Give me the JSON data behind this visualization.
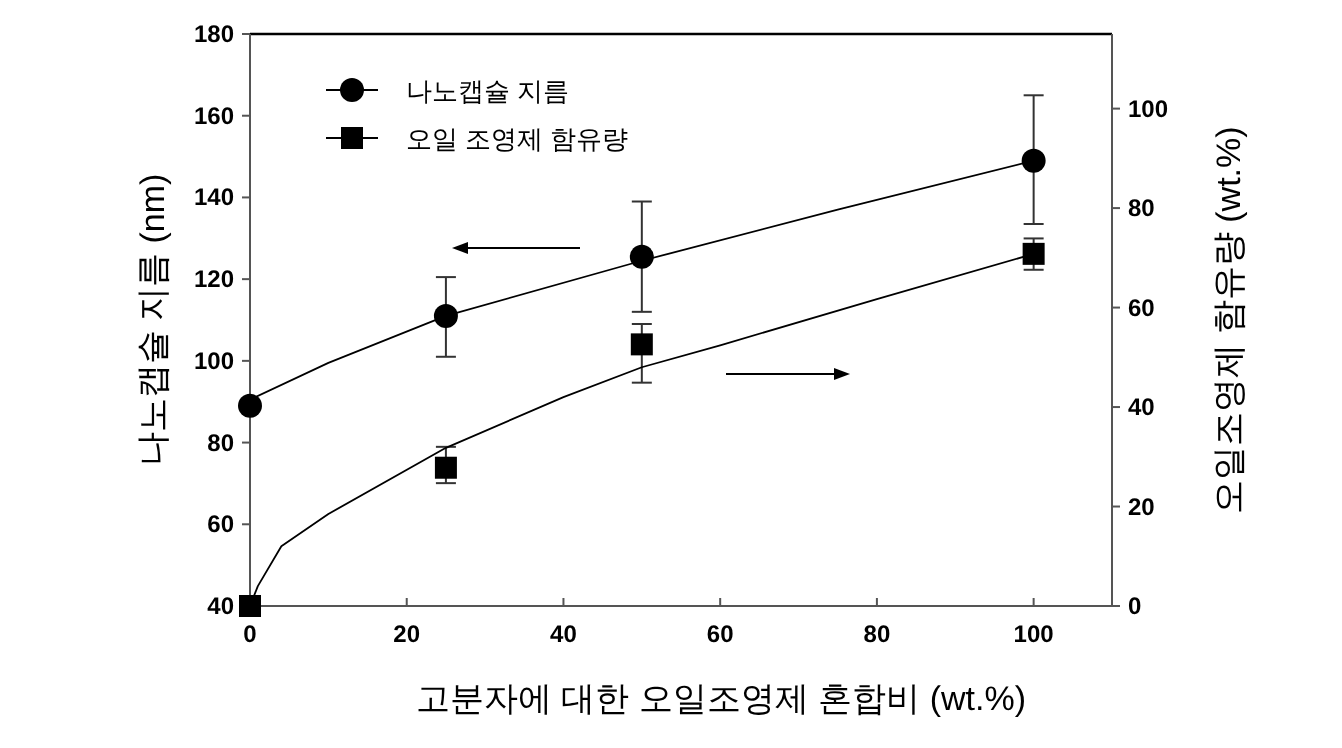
{
  "chart_data": {
    "type": "scatter",
    "xlabel": "고분자에 대한 오일조영제 혼합비 (wt.%)",
    "ylabel": "나노캡슐 지름 (nm)",
    "y2label": "오일조영제 함유량 (wt.%)",
    "xlim": [
      0,
      110
    ],
    "xticks": [
      0,
      20,
      40,
      60,
      80,
      100
    ],
    "ylim": [
      40,
      180
    ],
    "yticks": [
      40,
      60,
      80,
      100,
      120,
      140,
      160,
      180
    ],
    "y2lim": [
      0,
      115
    ],
    "y2ticks": [
      0,
      20,
      40,
      60,
      80,
      100
    ],
    "legend": "top left",
    "grid": false,
    "series": [
      {
        "name": "나노캡슐 지름",
        "type": "scatter",
        "marker": "circle",
        "color": "#000000",
        "x": [
          0,
          25,
          50,
          100
        ],
        "values": [
          89,
          111,
          125.5,
          149
        ],
        "errors": [
          null,
          [
            101,
            120.5
          ],
          [
            112,
            139
          ],
          [
            133.5,
            165
          ]
        ]
      },
      {
        "name": "오일 조영제 함유량",
        "type": "scatter",
        "marker": "square",
        "axis": "y2",
        "color": "#000000",
        "x": [
          0,
          25,
          50,
          100
        ],
        "values": [
          0,
          27.8,
          52.6,
          70.8
        ],
        "errors": [
          null,
          [
            24.7,
            32
          ],
          [
            44.9,
            56.7
          ],
          [
            67.6,
            73.9
          ]
        ]
      },
      {
        "type": "line",
        "marker": "none",
        "line_style": "solid",
        "color": "#000000",
        "x": [
          0,
          10,
          25,
          50,
          75,
          100
        ],
        "values": [
          90.5,
          99.5,
          111,
          124.5,
          137,
          149
        ]
      },
      {
        "type": "line",
        "marker": "none",
        "line_style": "solid",
        "axis": "y2",
        "color": "#000000",
        "x": [
          0,
          1,
          4,
          10,
          25,
          40,
          50,
          60,
          80,
          100
        ],
        "values": [
          0,
          4,
          12,
          18.5,
          31.8,
          42,
          48,
          52.4,
          61.7,
          70.8
        ]
      }
    ]
  }
}
